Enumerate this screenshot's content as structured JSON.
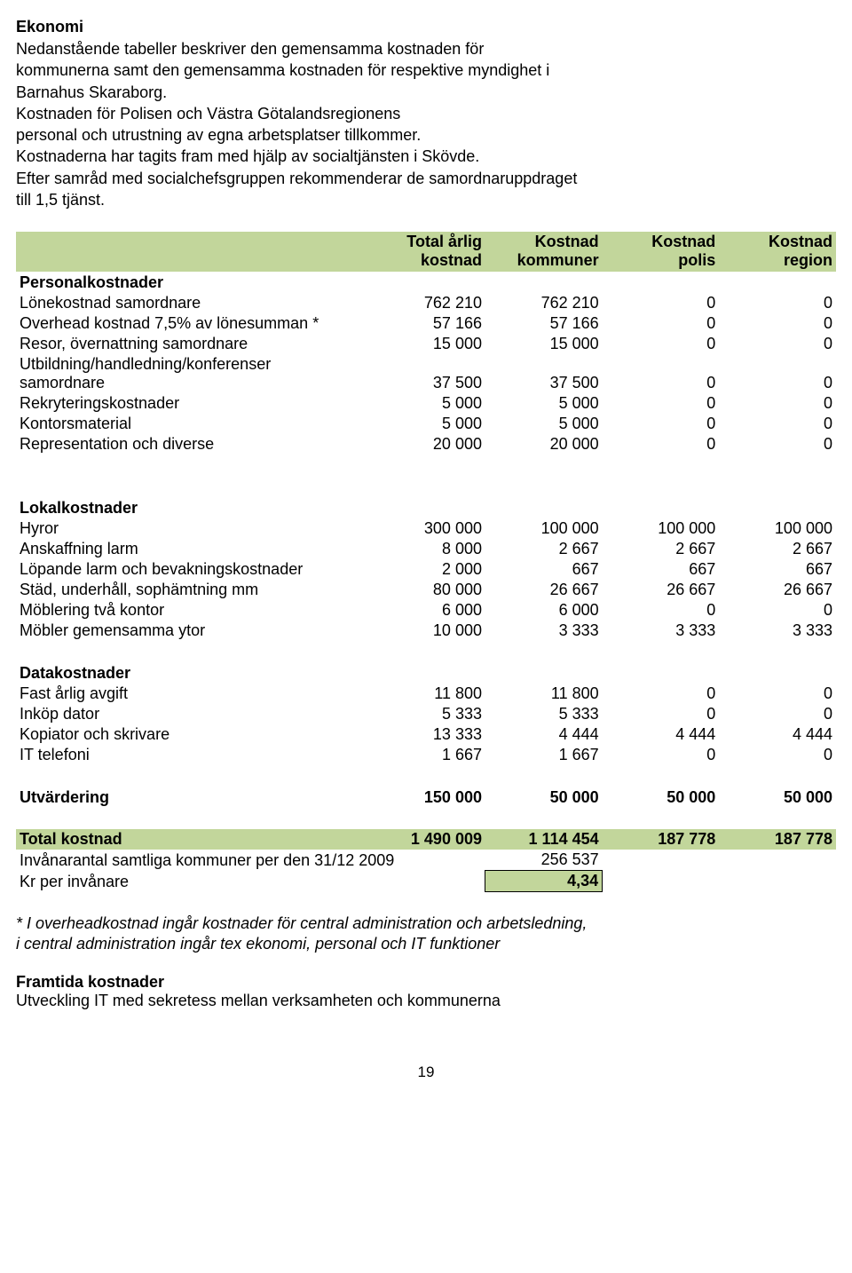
{
  "colors": {
    "header_bg": "#c2d69b",
    "total_bg": "#c2d69b",
    "boxed_bg": "#c2d69b",
    "text": "#000000",
    "page_bg": "#ffffff"
  },
  "heading": "Ekonomi",
  "intro": "Nedanstående tabeller beskriver den gemensamma kostnaden för\nkommunerna samt den gemensamma kostnaden för respektive myndighet i\nBarnahus Skaraborg.\nKostnaden för Polisen och Västra Götalandsregionens\npersonal och utrustning av egna arbetsplatser tillkommer.\nKostnaderna har tagits fram med hjälp av socialtjänsten i Skövde.\nEfter samråd med socialchefsgruppen rekommenderar de samordnaruppdraget\ntill 1,5 tjänst.",
  "table": {
    "header": {
      "c1_l1": "Total årlig",
      "c1_l2": "kostnad",
      "c2_l1": "Kostnad",
      "c2_l2": "kommuner",
      "c3_l1": "Kostnad",
      "c3_l2": "polis",
      "c4_l1": "Kostnad",
      "c4_l2": "region"
    },
    "sections": {
      "personal": {
        "title": "Personalkostnader",
        "rows": [
          {
            "label": "Lönekostnad samordnare",
            "c1": "762 210",
            "c2": "762 210",
            "c3": "0",
            "c4": "0"
          },
          {
            "label": "Overhead kostnad 7,5% av lönesumman *",
            "c1": "57 166",
            "c2": "57 166",
            "c3": "0",
            "c4": "0"
          },
          {
            "label": "Resor, övernattning samordnare",
            "c1": "15 000",
            "c2": "15 000",
            "c3": "0",
            "c4": "0"
          },
          {
            "label": "Utbildning/handledning/konferenser\nsamordnare",
            "c1": "37 500",
            "c2": "37 500",
            "c3": "0",
            "c4": "0"
          },
          {
            "label": "Rekryteringskostnader",
            "c1": "5 000",
            "c2": "5 000",
            "c3": "0",
            "c4": "0"
          },
          {
            "label": "Kontorsmaterial",
            "c1": "5 000",
            "c2": "5 000",
            "c3": "0",
            "c4": "0"
          },
          {
            "label": "Representation och diverse",
            "c1": "20 000",
            "c2": "20 000",
            "c3": "0",
            "c4": "0"
          }
        ]
      },
      "lokal": {
        "title": "Lokalkostnader",
        "rows": [
          {
            "label": "Hyror",
            "c1": "300 000",
            "c2": "100 000",
            "c3": "100 000",
            "c4": "100 000"
          },
          {
            "label": "Anskaffning larm",
            "c1": "8 000",
            "c2": "2 667",
            "c3": "2 667",
            "c4": "2 667"
          },
          {
            "label": "Löpande larm och bevakningskostnader",
            "c1": "2 000",
            "c2": "667",
            "c3": "667",
            "c4": "667"
          },
          {
            "label": "Städ, underhåll, sophämtning mm",
            "c1": "80 000",
            "c2": "26 667",
            "c3": "26 667",
            "c4": "26 667"
          },
          {
            "label": "Möblering  två kontor",
            "c1": "6 000",
            "c2": "6 000",
            "c3": "0",
            "c4": "0"
          },
          {
            "label": "Möbler gemensamma ytor",
            "c1": "10 000",
            "c2": "3 333",
            "c3": "3 333",
            "c4": "3 333"
          }
        ]
      },
      "data": {
        "title": "Datakostnader",
        "rows": [
          {
            "label": "Fast årlig avgift",
            "c1": "11 800",
            "c2": "11 800",
            "c3": "0",
            "c4": "0"
          },
          {
            "label": "Inköp dator",
            "c1": "5 333",
            "c2": "5 333",
            "c3": "0",
            "c4": "0"
          },
          {
            "label": "Kopiator och skrivare",
            "c1": "13 333",
            "c2": "4 444",
            "c3": "4 444",
            "c4": "4 444"
          },
          {
            "label": "IT telefoni",
            "c1": "1 667",
            "c2": "1 667",
            "c3": "0",
            "c4": "0"
          }
        ]
      },
      "utv": {
        "label": "Utvärdering",
        "c1": "150 000",
        "c2": "50 000",
        "c3": "50 000",
        "c4": "50 000"
      }
    },
    "total": {
      "label": "Total kostnad",
      "c1": "1 490 009",
      "c2": "1 114 454",
      "c3": "187 778",
      "c4": "187 778"
    },
    "inv_label": "Invånarantal samtliga kommuner per den 31/12 2009",
    "inv_value": "256 537",
    "kr_label": "Kr per invånare",
    "kr_value": "4,34"
  },
  "footnote": "* I overheadkostnad ingår kostnader för central administration och arbetsledning,\n  i central administration ingår tex ekonomi, personal och IT funktioner",
  "future_heading": "Framtida kostnader",
  "future_text": "Utveckling IT med sekretess mellan verksamheten och kommunerna",
  "page_number": "19"
}
